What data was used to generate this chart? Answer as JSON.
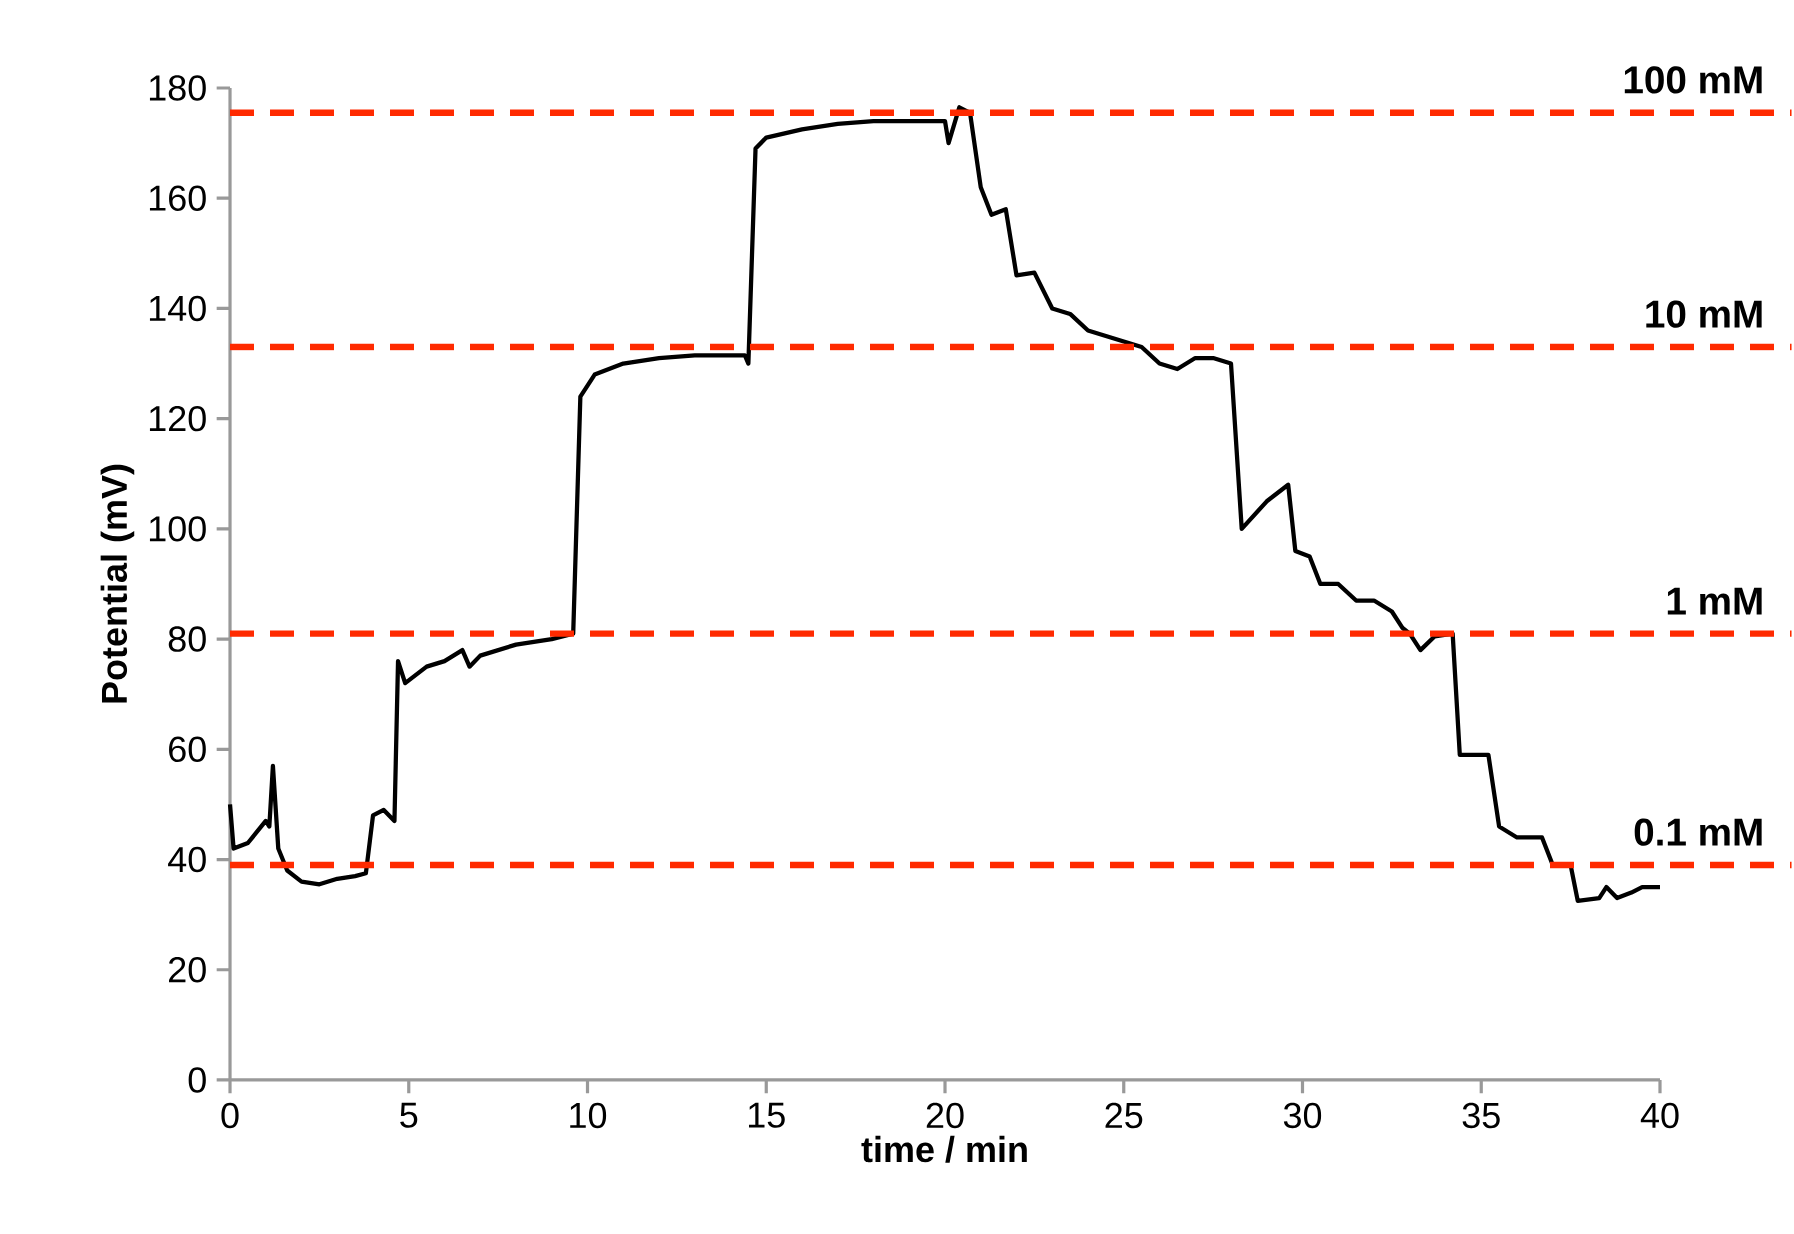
{
  "chart_data": {
    "type": "line",
    "xlabel": "time / min",
    "ylabel": "Potential (mV)",
    "xlim": [
      0,
      40
    ],
    "ylim": [
      0,
      180
    ],
    "xticks": [
      0,
      5,
      10,
      15,
      20,
      25,
      30,
      35,
      40
    ],
    "yticks": [
      0,
      20,
      40,
      60,
      80,
      100,
      120,
      140,
      160,
      180
    ],
    "x": [
      0,
      0.1,
      0.5,
      1.0,
      1.1,
      1.2,
      1.35,
      1.6,
      2,
      2.5,
      3,
      3.5,
      3.8,
      4.0,
      4.3,
      4.6,
      4.7,
      4.9,
      5.5,
      6,
      6.5,
      6.7,
      7,
      8,
      9,
      9.6,
      9.8,
      10.2,
      11,
      12,
      13,
      14.4,
      14.5,
      14.7,
      15,
      16,
      17,
      18,
      19,
      20,
      20.1,
      20.4,
      20.7,
      21.0,
      21.3,
      21.7,
      22,
      22.5,
      23,
      23.5,
      24,
      24.5,
      25,
      25.5,
      26,
      26.5,
      27,
      27.5,
      28,
      28.3,
      29,
      29.6,
      29.8,
      30.2,
      30.5,
      31,
      31.5,
      32,
      32.5,
      32.8,
      33,
      33.3,
      33.7,
      34.2,
      34.4,
      35.2,
      35.5,
      36,
      36.7,
      37,
      37.5,
      37.7,
      38.3,
      38.5,
      38.8,
      39.2,
      39.5,
      40
    ],
    "series": [
      {
        "color": "#000000",
        "values": [
          50,
          42,
          43,
          47,
          46,
          57,
          42,
          38,
          36,
          35.5,
          36.5,
          37,
          37.5,
          48,
          49,
          47,
          76,
          72,
          75,
          76,
          78,
          75,
          77,
          79,
          80,
          81,
          124,
          128,
          130,
          131,
          131.5,
          131.5,
          130,
          169,
          171,
          172.5,
          173.5,
          174,
          174,
          174,
          170,
          176.5,
          175.5,
          162,
          157,
          158,
          146,
          146.5,
          140,
          139,
          136,
          135,
          134,
          133,
          130,
          129,
          131,
          131,
          130,
          100,
          105,
          108,
          96,
          95,
          90,
          90,
          87,
          87,
          85,
          82,
          81,
          78,
          80.5,
          81,
          59,
          59,
          46,
          44,
          44,
          39,
          39,
          32.5,
          33,
          35,
          33,
          34,
          35,
          35
        ]
      }
    ],
    "ref_lines": [
      {
        "axis": "y",
        "value": 175.5,
        "label": "100 mM",
        "color": "#ff2a00",
        "line_style": "dashed"
      },
      {
        "axis": "y",
        "value": 133,
        "label": "10 mM",
        "color": "#ff2a00",
        "line_style": "dashed"
      },
      {
        "axis": "y",
        "value": 81,
        "label": "1 mM",
        "color": "#ff2a00",
        "line_style": "dashed"
      },
      {
        "axis": "y",
        "value": 39,
        "label": "0.1 mM",
        "color": "#ff2a00",
        "line_style": "dashed"
      }
    ]
  }
}
